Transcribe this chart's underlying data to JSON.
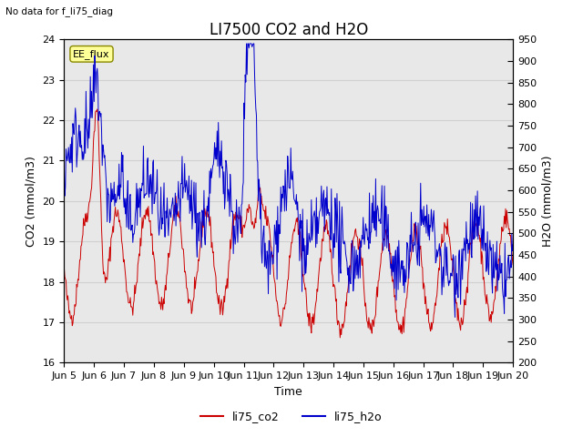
{
  "title": "LI7500 CO2 and H2O",
  "subtitle": "No data for f_li75_diag",
  "xlabel": "Time",
  "ylabel_left": "CO2 (mmol/m3)",
  "ylabel_right": "H2O (mmol/m3)",
  "ylim_left": [
    16.0,
    24.0
  ],
  "ylim_right": [
    200,
    950
  ],
  "yticks_left": [
    16.0,
    17.0,
    18.0,
    19.0,
    20.0,
    21.0,
    22.0,
    23.0,
    24.0
  ],
  "yticks_right": [
    200,
    250,
    300,
    350,
    400,
    450,
    500,
    550,
    600,
    650,
    700,
    750,
    800,
    850,
    900,
    950
  ],
  "xtick_labels": [
    "Jun 5",
    "Jun 6",
    "Jun 7",
    "Jun 8",
    "Jun 9",
    "Jun 10",
    "Jun 11",
    "Jun 12",
    "Jun 13",
    "Jun 14",
    "Jun 15",
    "Jun 16",
    "Jun 17",
    "Jun 18",
    "Jun 19",
    "Jun 20"
  ],
  "color_co2": "#cc0000",
  "color_h2o": "#0000cc",
  "legend_label_co2": "li75_co2",
  "legend_label_h2o": "li75_h2o",
  "annotation_text": "EE_flux",
  "grid_color": "#d0d0d0",
  "plot_bg_color": "#e8e8e8",
  "background_color": "#ffffff",
  "title_fontsize": 12,
  "label_fontsize": 9,
  "tick_fontsize": 8
}
